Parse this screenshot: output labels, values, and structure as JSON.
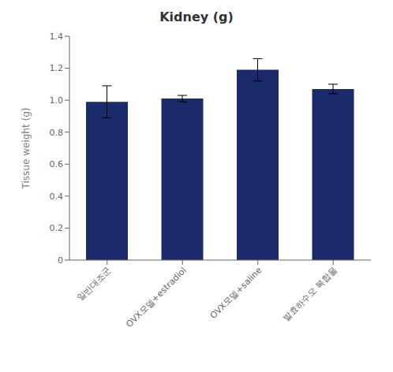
{
  "chart_data": {
    "type": "bar",
    "title": "Kidney (g)",
    "y_label": "Tissue weight (g)",
    "categories": [
      "일반대조군",
      "OVX모델+estradiol",
      "OVX모델+saline",
      "발효하수오 복합물"
    ],
    "values": [
      0.99,
      1.01,
      1.19,
      1.07
    ],
    "errors": [
      0.1,
      0.02,
      0.07,
      0.03
    ],
    "color": "#1B2A6B",
    "ylim": [
      0,
      1.4
    ],
    "yticks": [
      0,
      0.2,
      0.4,
      0.6,
      0.8,
      {
        "value": 1.0,
        "label": "1.0"
      },
      1.2,
      1.4
    ],
    "grid": false
  }
}
